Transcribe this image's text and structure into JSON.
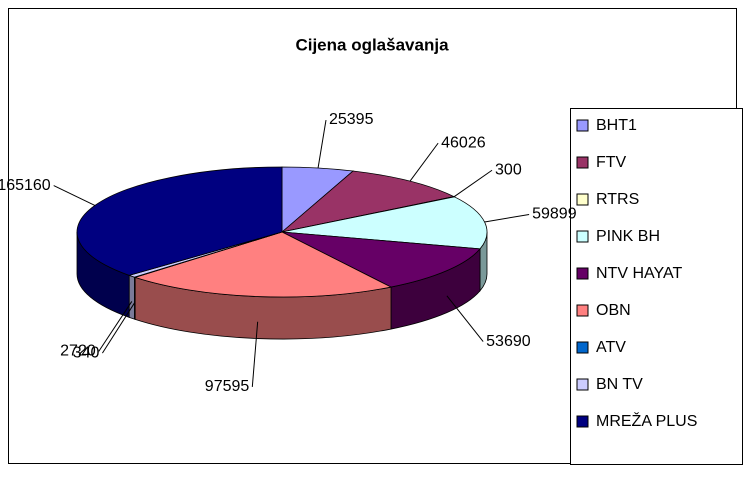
{
  "chart_data": {
    "type": "pie",
    "title": "Cijena oglašavanja",
    "categories": [
      "BHT1",
      "FTV",
      "RTRS",
      "PINK BH",
      "NTV HAYAT",
      "OBN",
      "ATV",
      "BN TV",
      "MREŽA PLUS"
    ],
    "values": [
      25395,
      46026,
      300,
      59899,
      53690,
      97595,
      340,
      2720,
      165160
    ],
    "colors": [
      "#9999ff",
      "#993366",
      "#ffffcc",
      "#ccffff",
      "#660066",
      "#ff8080",
      "#0066cc",
      "#ccccff",
      "#000080"
    ],
    "legend": "right"
  }
}
